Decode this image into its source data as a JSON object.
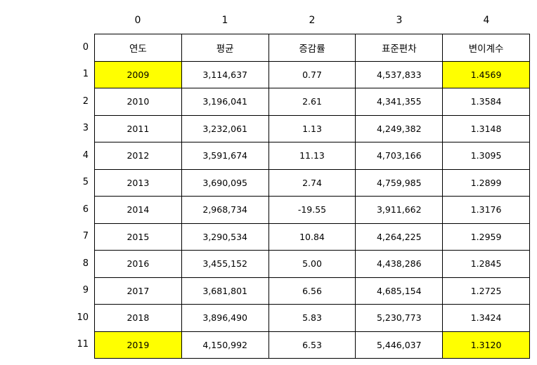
{
  "chart_data": {
    "type": "table",
    "column_indices": [
      "0",
      "1",
      "2",
      "3",
      "4"
    ],
    "row_indices": [
      "0",
      "1",
      "2",
      "3",
      "4",
      "5",
      "6",
      "7",
      "8",
      "9",
      "10",
      "11"
    ],
    "rows": [
      [
        "연도",
        "평균",
        "증감률",
        "표준편차",
        "변이계수"
      ],
      [
        "2009",
        "3,114,637",
        "0.77",
        "4,537,833",
        "1.4569"
      ],
      [
        "2010",
        "3,196,041",
        "2.61",
        "4,341,355",
        "1.3584"
      ],
      [
        "2011",
        "3,232,061",
        "1.13",
        "4,249,382",
        "1.3148"
      ],
      [
        "2012",
        "3,591,674",
        "11.13",
        "4,703,166",
        "1.3095"
      ],
      [
        "2013",
        "3,690,095",
        "2.74",
        "4,759,985",
        "1.2899"
      ],
      [
        "2014",
        "2,968,734",
        "-19.55",
        "3,911,662",
        "1.3176"
      ],
      [
        "2015",
        "3,290,534",
        "10.84",
        "4,264,225",
        "1.2959"
      ],
      [
        "2016",
        "3,455,152",
        "5.00",
        "4,438,286",
        "1.2845"
      ],
      [
        "2017",
        "3,681,801",
        "6.56",
        "4,685,154",
        "1.2725"
      ],
      [
        "2018",
        "3,896,490",
        "5.83",
        "5,230,773",
        "1.3424"
      ],
      [
        "2019",
        "4,150,992",
        "6.53",
        "5,446,037",
        "1.3120"
      ]
    ],
    "highlighted_cells": [
      [
        1,
        0
      ],
      [
        1,
        4
      ],
      [
        11,
        0
      ],
      [
        11,
        4
      ]
    ],
    "highlight_color": "#ffff00",
    "border_color": "#000000",
    "background_color": "#ffffff"
  }
}
